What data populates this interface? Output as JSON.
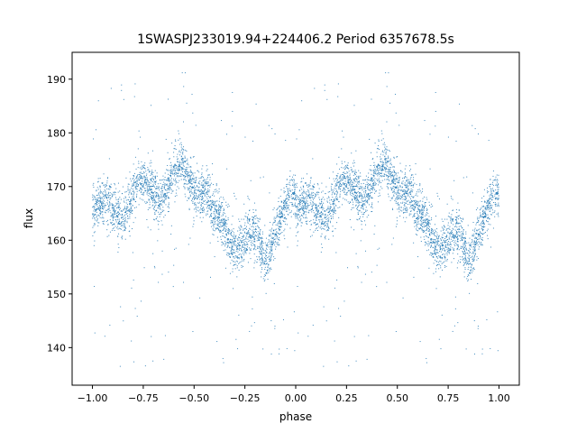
{
  "chart_data": {
    "type": "scatter",
    "title": "1SWASPJ233019.94+224406.2 Period 6357678.5s",
    "xlabel": "phase",
    "ylabel": "flux",
    "xlim": [
      -1.1,
      1.1
    ],
    "ylim": [
      133,
      195
    ],
    "xticks": [
      -1.0,
      -0.75,
      -0.5,
      -0.25,
      0.0,
      0.25,
      0.5,
      0.75,
      1.0
    ],
    "xtick_labels": [
      "−1.00",
      "−0.75",
      "−0.50",
      "−0.25",
      "0.00",
      "0.25",
      "0.50",
      "0.75",
      "1.00"
    ],
    "yticks": [
      140,
      150,
      160,
      170,
      180,
      190
    ],
    "ytick_labels": [
      "140",
      "150",
      "160",
      "170",
      "180",
      "190"
    ],
    "grid": false,
    "marker_color": "#1f77b4",
    "curve_anchors": {
      "phase": [
        0.0,
        0.05,
        0.1,
        0.15,
        0.2,
        0.25,
        0.3,
        0.35,
        0.4,
        0.45,
        0.5,
        0.55,
        0.6,
        0.65,
        0.7,
        0.75,
        0.8,
        0.85,
        0.9,
        0.95,
        1.0
      ],
      "flux": [
        165,
        165,
        166,
        167,
        168,
        169,
        170,
        170,
        171,
        172,
        172,
        170,
        163,
        162,
        161,
        160,
        159,
        157,
        164,
        165,
        166
      ]
    },
    "points_note_values": {
      "n_points": 6000,
      "scatter": 2.2,
      "outlier_fraction": 0.05,
      "outlier_range": [
        136,
        192
      ]
    }
  }
}
